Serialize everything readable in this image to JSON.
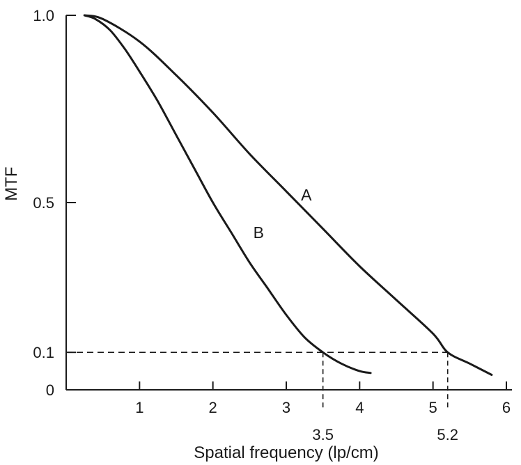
{
  "chart_data": {
    "type": "line",
    "title": "",
    "xlabel": "Spatial frequency (lp/cm)",
    "ylabel": "MTF",
    "xlim": [
      0,
      6
    ],
    "ylim": [
      0,
      1.0
    ],
    "grid": false,
    "x_ticks": [
      {
        "value": 1,
        "label": "1"
      },
      {
        "value": 2,
        "label": "2"
      },
      {
        "value": 3,
        "label": "3"
      },
      {
        "value": 4,
        "label": "4"
      },
      {
        "value": 5,
        "label": "5"
      },
      {
        "value": 6,
        "label": "6"
      }
    ],
    "y_ticks": [
      {
        "value": 0,
        "label": "0"
      },
      {
        "value": 0.1,
        "label": "0.1"
      },
      {
        "value": 0.5,
        "label": "0.5"
      },
      {
        "value": 1.0,
        "label": "1.0"
      }
    ],
    "series": [
      {
        "name": "A",
        "x": [
          0.25,
          0.5,
          1.0,
          1.5,
          2.0,
          2.5,
          3.0,
          3.5,
          4.0,
          4.5,
          5.0,
          5.2,
          5.5,
          5.8
        ],
        "y": [
          1.0,
          0.99,
          0.93,
          0.84,
          0.74,
          0.63,
          0.53,
          0.43,
          0.33,
          0.24,
          0.15,
          0.1,
          0.07,
          0.04
        ]
      },
      {
        "name": "B",
        "x": [
          0.25,
          0.4,
          0.6,
          0.8,
          1.0,
          1.25,
          1.5,
          1.75,
          2.0,
          2.25,
          2.5,
          2.75,
          3.0,
          3.25,
          3.5,
          3.75,
          4.0,
          4.15
        ],
        "y": [
          1.0,
          0.99,
          0.96,
          0.91,
          0.85,
          0.77,
          0.68,
          0.59,
          0.5,
          0.42,
          0.34,
          0.27,
          0.2,
          0.14,
          0.1,
          0.07,
          0.05,
          0.045
        ]
      }
    ],
    "reference_lines": [
      {
        "x": 3.5,
        "y": 0.1,
        "label": "3.5"
      },
      {
        "x": 5.2,
        "y": 0.1,
        "label": "5.2"
      }
    ]
  }
}
